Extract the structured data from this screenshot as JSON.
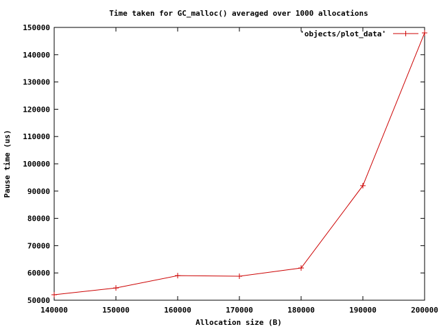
{
  "chart_data": {
    "type": "line",
    "title": "Time taken for GC_malloc() averaged over 1000 allocations",
    "xlabel": "Allocation size (B)",
    "ylabel": "Pause time (us)",
    "xlim": [
      140000,
      200000
    ],
    "ylim": [
      50000,
      150000
    ],
    "xticks": [
      140000,
      150000,
      160000,
      170000,
      180000,
      190000,
      200000
    ],
    "yticks": [
      50000,
      60000,
      70000,
      80000,
      90000,
      100000,
      110000,
      120000,
      130000,
      140000,
      150000
    ],
    "grid": false,
    "legend_position": "top-right",
    "series": [
      {
        "name": "'objects/plot_data'",
        "color": "#cc0000",
        "marker": "plus",
        "x": [
          140000,
          150000,
          160000,
          170000,
          180000,
          190000,
          200000
        ],
        "y": [
          52000,
          54500,
          59000,
          58800,
          61800,
          92000,
          148000
        ]
      }
    ]
  }
}
